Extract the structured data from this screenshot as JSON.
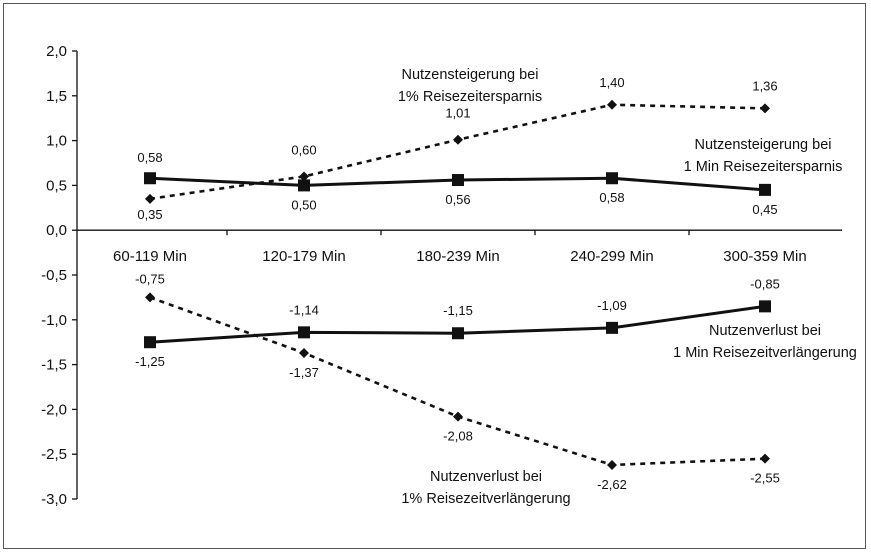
{
  "chart_data": {
    "type": "line",
    "title": "",
    "xlabel": "",
    "ylabel": "",
    "ylim": [
      -3.0,
      2.0
    ],
    "yticks": [
      "2,0",
      "1,5",
      "1,0",
      "0,5",
      "0,0",
      "-0,5",
      "-1,0",
      "-1,5",
      "-2,0",
      "-2,5",
      "-3,0"
    ],
    "grid": false,
    "categories": [
      "60-119 Min",
      "120-179 Min",
      "180-239 Min",
      "240-299 Min",
      "300-359 Min"
    ],
    "series": [
      {
        "style": "dashed-diamond",
        "values": [
          0.35,
          0.6,
          1.01,
          1.4,
          1.36
        ],
        "labels": [
          "0,35",
          "0,60",
          "1,01",
          "1,40",
          "1,36"
        ],
        "annotation": [
          "Nutzensteigerung bei",
          "1% Reisezeitersparnis"
        ]
      },
      {
        "style": "solid-square",
        "values": [
          0.58,
          0.5,
          0.56,
          0.58,
          0.45
        ],
        "labels": [
          "0,58",
          "0,50",
          "0,56",
          "0,58",
          "0,45"
        ],
        "annotation": [
          "Nutzensteigerung bei",
          "1 Min Reisezeitersparnis"
        ]
      },
      {
        "style": "solid-square",
        "values": [
          -1.25,
          -1.14,
          -1.15,
          -1.09,
          -0.85
        ],
        "labels": [
          "-1,25",
          "-1,14",
          "-1,15",
          "-1,09",
          "-0,85"
        ],
        "annotation": [
          "Nutzenverlust bei",
          "1 Min Reisezeitverlängerung"
        ]
      },
      {
        "style": "dashed-diamond",
        "values": [
          -0.75,
          -1.37,
          -2.08,
          -2.62,
          -2.55
        ],
        "labels": [
          "-0,75",
          "-1,37",
          "-2,08",
          "-2,62",
          "-2,55"
        ],
        "annotation": [
          "Nutzenverlust bei",
          "1% Reisezeitverlängerung"
        ]
      }
    ]
  }
}
